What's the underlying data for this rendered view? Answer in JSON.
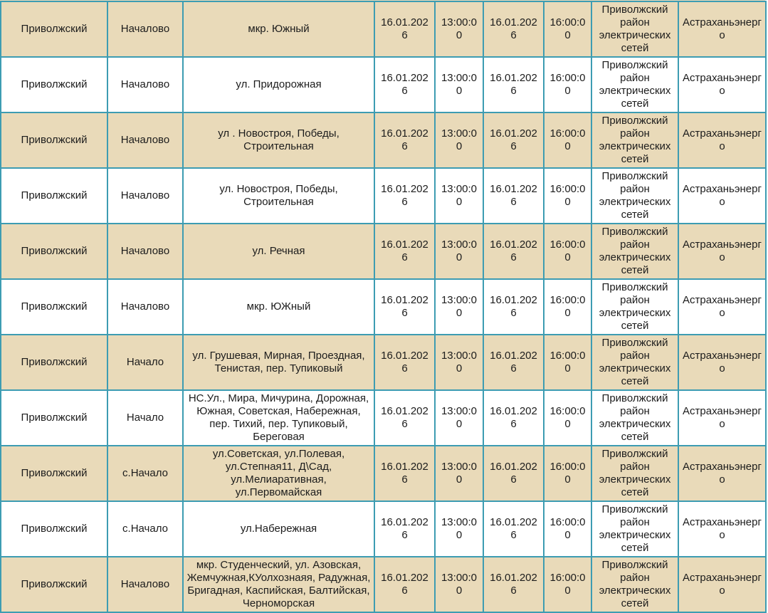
{
  "colors": {
    "border": "#3d9cb2",
    "row_shaded": "#e9dab9",
    "row_plain": "#ffffff",
    "text": "#1c1c1c"
  },
  "rows": [
    {
      "district": "Приволжский",
      "settlement": "Началово",
      "streets": "мкр. Южный",
      "start_date": "16.01.2026",
      "start_time": "13:00:00",
      "end_date": "16.01.2026",
      "end_time": "16:00:00",
      "grid_org": "Приволжский район электрических сетей",
      "company": "Астраханьэнерго"
    },
    {
      "district": "Приволжский",
      "settlement": "Началово",
      "streets": "ул. Придорожная",
      "start_date": "16.01.2026",
      "start_time": "13:00:00",
      "end_date": "16.01.2026",
      "end_time": "16:00:00",
      "grid_org": "Приволжский район электрических сетей",
      "company": "Астраханьэнерго"
    },
    {
      "district": "Приволжский",
      "settlement": "Началово",
      "streets": "ул . Новостроя, Победы, Строительная",
      "start_date": "16.01.2026",
      "start_time": "13:00:00",
      "end_date": "16.01.2026",
      "end_time": "16:00:00",
      "grid_org": "Приволжский район электрических сетей",
      "company": "Астраханьэнерго"
    },
    {
      "district": "Приволжский",
      "settlement": "Началово",
      "streets": "ул. Новостроя, Победы, Строительная",
      "start_date": "16.01.2026",
      "start_time": "13:00:00",
      "end_date": "16.01.2026",
      "end_time": "16:00:00",
      "grid_org": "Приволжский район электрических сетей",
      "company": "Астраханьэнерго"
    },
    {
      "district": "Приволжский",
      "settlement": "Началово",
      "streets": "ул. Речная",
      "start_date": "16.01.2026",
      "start_time": "13:00:00",
      "end_date": "16.01.2026",
      "end_time": "16:00:00",
      "grid_org": "Приволжский район электрических сетей",
      "company": "Астраханьэнерго"
    },
    {
      "district": "Приволжский",
      "settlement": "Началово",
      "streets": "мкр. ЮЖный",
      "start_date": "16.01.2026",
      "start_time": "13:00:00",
      "end_date": "16.01.2026",
      "end_time": "16:00:00",
      "grid_org": "Приволжский район электрических сетей",
      "company": "Астраханьэнерго"
    },
    {
      "district": "Приволжский",
      "settlement": "Начало",
      "streets": "ул. Грушевая, Мирная, Проездная, Тенистая, пер. Тупиковый",
      "start_date": "16.01.2026",
      "start_time": "13:00:00",
      "end_date": "16.01.2026",
      "end_time": "16:00:00",
      "grid_org": "Приволжский район электрических сетей",
      "company": "Астраханьэнерго"
    },
    {
      "district": "Приволжский",
      "settlement": "Начало",
      "streets": "НС.Ул., Мира, Мичурина, Дорожная, Южная, Советская, Набережная, пер. Тихий, пер. Тупиковый, Береговая",
      "start_date": "16.01.2026",
      "start_time": "13:00:00",
      "end_date": "16.01.2026",
      "end_time": "16:00:00",
      "grid_org": "Приволжский район электрических сетей",
      "company": "Астраханьэнерго"
    },
    {
      "district": "Приволжский",
      "settlement": "с.Начало",
      "streets": "ул.Советская, ул.Полевая, ул.Степная11, Д\\Сад, ул.Мелиаративная, ул.Первомайская",
      "start_date": "16.01.2026",
      "start_time": "13:00:00",
      "end_date": "16.01.2026",
      "end_time": "16:00:00",
      "grid_org": "Приволжский район электрических сетей",
      "company": "Астраханьэнерго"
    },
    {
      "district": "Приволжский",
      "settlement": "с.Начало",
      "streets": "ул.Набережная",
      "start_date": "16.01.2026",
      "start_time": "13:00:00",
      "end_date": "16.01.2026",
      "end_time": "16:00:00",
      "grid_org": "Приволжский район электрических сетей",
      "company": "Астраханьэнерго"
    },
    {
      "district": "Приволжский",
      "settlement": "Началово",
      "streets": "мкр. Студенческий, ул. Азовская, Жемчужная,КУолхознаяя, Радужная, Бригадная, Каспийская, Балтийская, Черноморская",
      "start_date": "16.01.2026",
      "start_time": "13:00:00",
      "end_date": "16.01.2026",
      "end_time": "16:00:00",
      "grid_org": "Приволжский район электрических сетей",
      "company": "Астраханьэнерго"
    }
  ]
}
